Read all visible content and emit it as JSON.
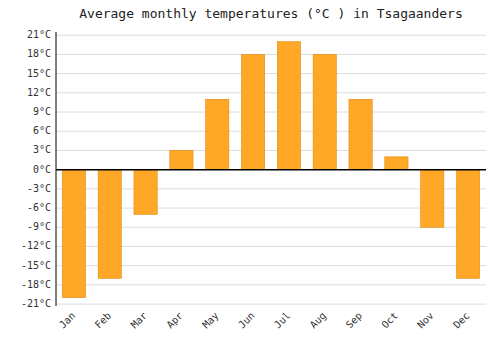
{
  "chart_data": {
    "type": "bar",
    "title": "Average monthly temperatures (°C ) in Tsagaanders",
    "categories": [
      "Jan",
      "Feb",
      "Mar",
      "Apr",
      "May",
      "Jun",
      "Jul",
      "Aug",
      "Sep",
      "Oct",
      "Nov",
      "Dec"
    ],
    "values": [
      -20,
      -17,
      -7,
      3,
      11,
      18,
      20,
      18,
      11,
      2,
      -9,
      -17
    ],
    "color": "#FFA726",
    "ylim": [
      -21.3,
      21.5
    ],
    "yticks": [
      {
        "value": -21,
        "label": "-21°C"
      },
      {
        "value": -18,
        "label": "-18°C"
      },
      {
        "value": -15,
        "label": "-15°C"
      },
      {
        "value": -12,
        "label": "-12°C"
      },
      {
        "value": -9,
        "label": "-9°C"
      },
      {
        "value": -6,
        "label": "-6°C"
      },
      {
        "value": -3,
        "label": "-3°C"
      },
      {
        "value": 0,
        "label": "0°C"
      },
      {
        "value": 3,
        "label": "3°C"
      },
      {
        "value": 6,
        "label": "6°C"
      },
      {
        "value": 9,
        "label": "9°C"
      },
      {
        "value": 12,
        "label": "12°C"
      },
      {
        "value": 15,
        "label": "15°C"
      },
      {
        "value": 18,
        "label": "18°C"
      },
      {
        "value": 21,
        "label": "21°C"
      }
    ],
    "grid": true
  }
}
